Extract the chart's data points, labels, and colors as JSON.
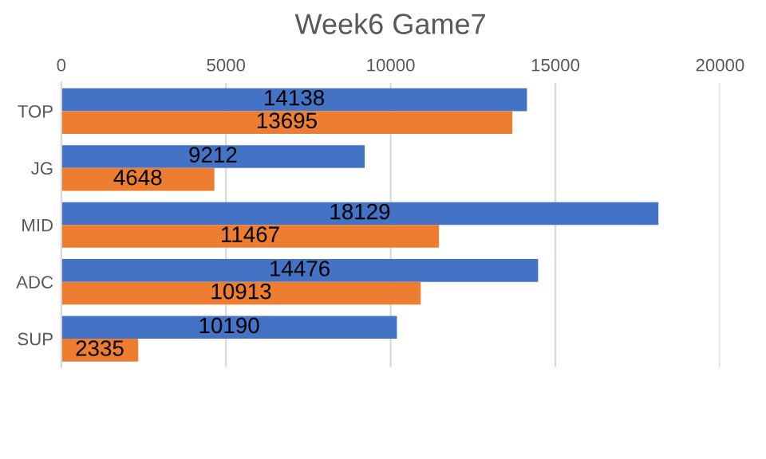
{
  "chart_data": {
    "type": "bar",
    "title": "Week6 Game7",
    "orientation": "horizontal",
    "categories": [
      "TOP",
      "JG",
      "MID",
      "ADC",
      "SUP"
    ],
    "series": [
      {
        "color": "#4472c4",
        "values": [
          14138,
          9212,
          18129,
          14476,
          10190
        ]
      },
      {
        "color": "#ed7d31",
        "values": [
          13695,
          4648,
          11467,
          10913,
          2335
        ]
      }
    ],
    "xlim": [
      0,
      20000
    ],
    "xticks": [
      0,
      5000,
      10000,
      15000,
      20000
    ],
    "grid": "x",
    "data_labels": true
  }
}
